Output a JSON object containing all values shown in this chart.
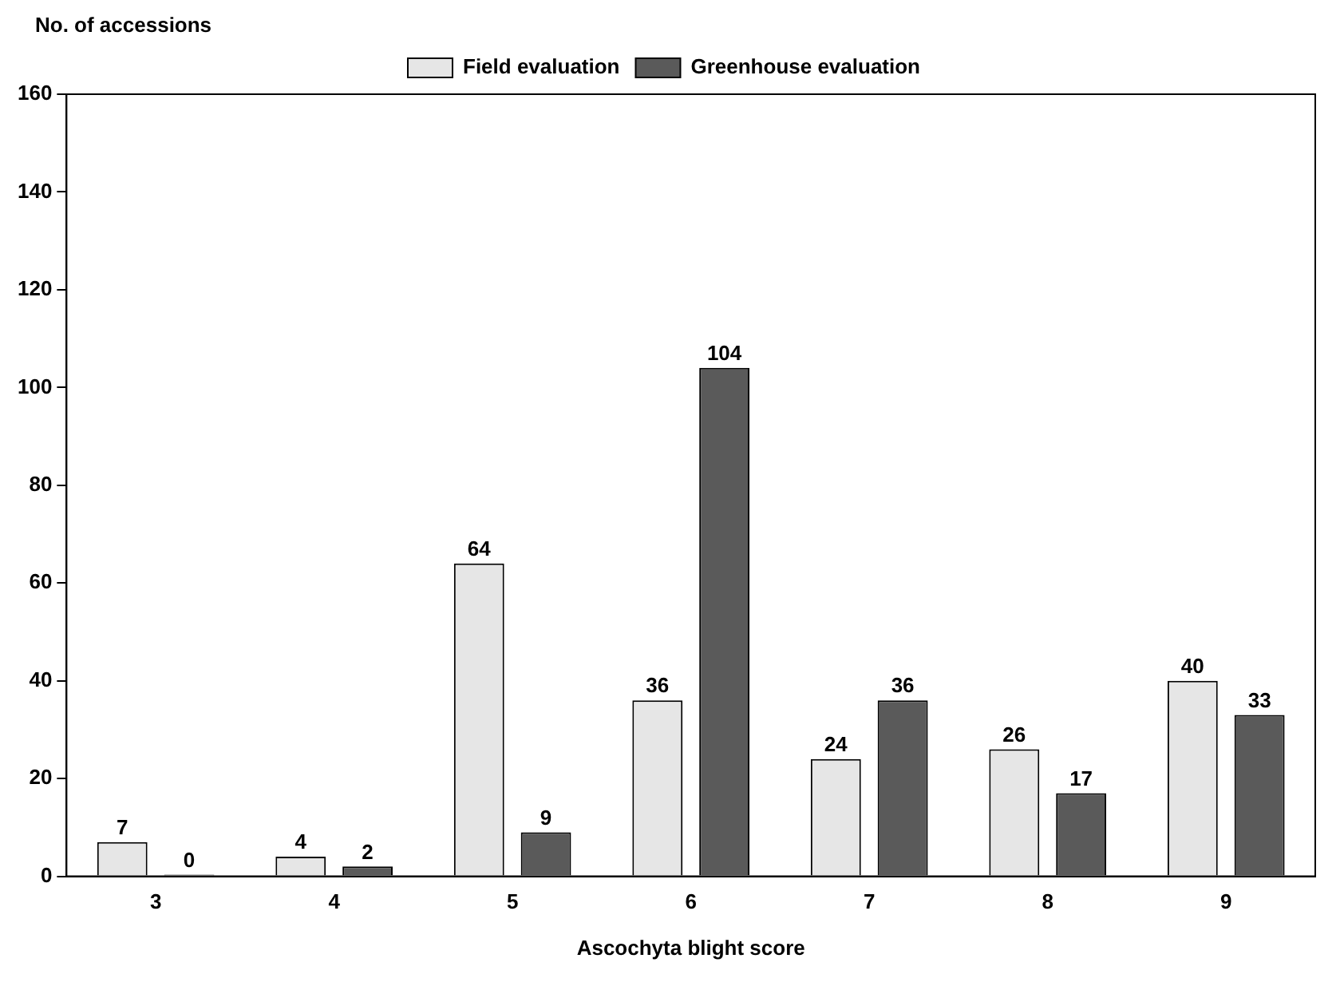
{
  "chart_data": {
    "type": "bar",
    "xlabel": "Ascochyta blight score",
    "ylabel": "No. of accessions",
    "categories": [
      "3",
      "4",
      "5",
      "6",
      "7",
      "8",
      "9"
    ],
    "series": [
      {
        "name": "Field evaluation",
        "color": "#e6e6e6",
        "values": [
          7,
          4,
          64,
          36,
          24,
          26,
          40
        ]
      },
      {
        "name": "Greenhouse evaluation",
        "color": "#5a5a5a",
        "values": [
          0,
          2,
          9,
          104,
          36,
          17,
          33
        ]
      }
    ],
    "ylim": [
      0,
      160
    ],
    "yticks": [
      0,
      20,
      40,
      60,
      80,
      100,
      120,
      140,
      160
    ],
    "grid": false,
    "legend": "top",
    "data_labels": true
  }
}
